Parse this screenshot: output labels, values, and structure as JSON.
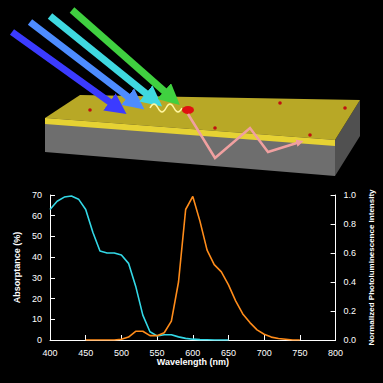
{
  "chart_data": {
    "type": "line",
    "x": [
      400,
      410,
      420,
      430,
      440,
      450,
      460,
      470,
      480,
      490,
      500,
      510,
      520,
      530,
      540,
      550,
      560,
      570,
      580,
      590,
      600,
      610,
      620,
      630,
      640,
      650,
      660,
      670,
      680,
      690,
      700,
      710,
      720,
      730,
      740,
      750,
      760,
      770,
      780,
      790,
      800
    ],
    "series": [
      {
        "color": "#33d8e6",
        "values": [
          63,
          67,
          69,
          69.5,
          68,
          63,
          52,
          43,
          42,
          42,
          41,
          37,
          26,
          12,
          4,
          2,
          2.5,
          2.5,
          1.5,
          0.8,
          0.4,
          0.2,
          0.1,
          0,
          0,
          0,
          null,
          null,
          null,
          null,
          null,
          null,
          null,
          null,
          null,
          null,
          null,
          null,
          null,
          null,
          null
        ]
      },
      {
        "color": "#ff8c1a",
        "axis": "y2",
        "values": [
          null,
          null,
          null,
          null,
          null,
          0,
          0,
          0,
          0,
          0,
          0.005,
          0.02,
          0.06,
          0.06,
          0.03,
          0.03,
          0.05,
          0.13,
          0.4,
          0.9,
          0.99,
          0.82,
          0.62,
          0.52,
          0.47,
          0.38,
          0.27,
          0.18,
          0.12,
          0.07,
          0.04,
          0.02,
          0.01,
          0.005,
          0,
          0,
          null,
          null,
          null,
          null,
          null
        ]
      }
    ],
    "x_label": "Wavelength (nm)",
    "y_label": "Absorptance (%)",
    "y2_label": "Normalized Photoluminescence Intensity",
    "xlim": [
      400,
      800
    ],
    "xticks": [
      400,
      450,
      500,
      550,
      600,
      650,
      700,
      750,
      800
    ],
    "ylim": [
      0,
      70
    ],
    "yticks": [
      0,
      10,
      20,
      30,
      40,
      50,
      60,
      70
    ],
    "y2lim": [
      0,
      1
    ],
    "y2ticks": [
      {
        "value": 0,
        "label": "0.0"
      },
      {
        "value": 0.2,
        "label": "0.2"
      },
      {
        "value": 0.4,
        "label": "0.4"
      },
      {
        "value": 0.6,
        "label": "0.6"
      },
      {
        "value": 0.8,
        "label": "0.8"
      },
      {
        "value": 1,
        "label": "1.0"
      }
    ],
    "grid": false
  }
}
